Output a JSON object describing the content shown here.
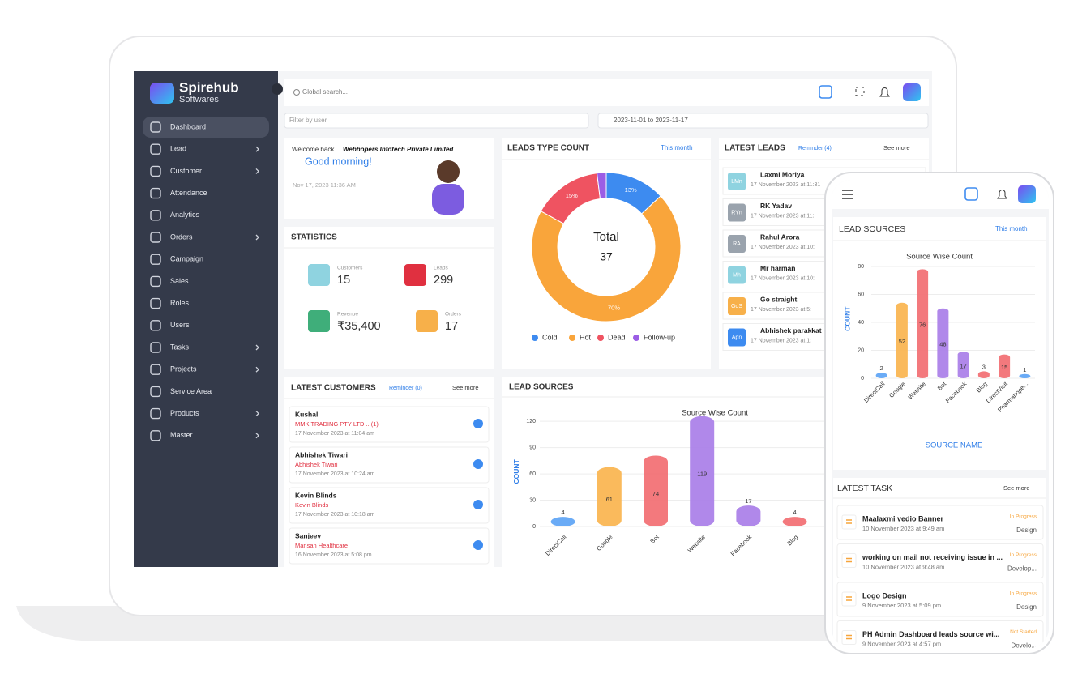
{
  "sidebar": {
    "brand": "Spirehub",
    "brand_sub": "Softwares",
    "nav": [
      "Dashboard",
      "Lead",
      "Customer",
      "Attendance",
      "Analytics",
      "Orders",
      "Campaign",
      "Sales",
      "Roles",
      "Users",
      "Tasks",
      "Projects",
      "Service Area",
      "Products",
      "Master"
    ]
  },
  "header": {
    "search": "Global search...",
    "filter": "Filter by user",
    "date_range": "2023-11-01 to 2023-11-17"
  },
  "welcome": {
    "greeting": "Welcome back",
    "company": "Webhopers Infotech Private Limited",
    "message": "Good morning!",
    "datetime": "Nov 17, 2023 11:36 AM"
  },
  "statistics": {
    "title": "STATISTICS",
    "items": [
      {
        "label": "Customers",
        "value": "15"
      },
      {
        "label": "Leads",
        "value": "299"
      },
      {
        "label": "Revenue",
        "value": "₹35,400"
      },
      {
        "label": "Orders",
        "value": "17"
      }
    ]
  },
  "latest_leads": {
    "title": "LATEST LEADS",
    "reminder": "Reminder (4)",
    "see_more": "See more",
    "items": [
      {
        "initials": "LMn",
        "name": "Laxmi Moriya",
        "date": "17 November 2023 at 11:31"
      },
      {
        "initials": "RYn",
        "name": "RK Yadav",
        "date": "17 November 2023 at 11:"
      },
      {
        "initials": "RA",
        "name": "Rahul Arora",
        "date": "17 November 2023 at 10:"
      },
      {
        "initials": "Mh",
        "name": "Mr harman",
        "date": "17 November 2023 at 10:"
      },
      {
        "initials": "GoS",
        "name": "Go straight",
        "date": "17 November 2023 at 5:"
      },
      {
        "initials": "Apn",
        "name": "Abhishek parakkat",
        "date": "17 November 2023 at 1:"
      }
    ]
  },
  "latest_customers": {
    "title": "LATEST CUSTOMERS",
    "reminder": "Reminder (0)",
    "see_more": "See more",
    "items": [
      {
        "name": "Kushal",
        "company": "MMK TRADING PTY LTD ...(1)",
        "date": "17 November 2023 at 11:04 am"
      },
      {
        "name": "Abhishek Tiwari",
        "company": "Abhishek Tiwari",
        "date": "17 November 2023 at 10:24 am"
      },
      {
        "name": "Kevin Blinds",
        "company": "Kevin Blinds",
        "date": "17 November 2023 at 10:18 am"
      },
      {
        "name": "Sanjeev",
        "company": "Mansan Healthcare",
        "date": "16 November 2023 at 5:08 pm"
      }
    ]
  },
  "laptop_lead_sources": {
    "title": "LEAD SOURCES"
  },
  "phone_lead_sources": {
    "title": "LEAD SOURCES",
    "period": "This month"
  },
  "latest_task": {
    "title": "LATEST TASK",
    "see_more": "See more",
    "items": [
      {
        "title": "Maalaxmi vedio Banner",
        "date": "10 November 2023 at 9:49 am",
        "status": "In Progress",
        "category": "Design"
      },
      {
        "title": "working on mail not receiving issue in ...",
        "date": "10 November 2023 at 9:48 am",
        "status": "In Progress",
        "category": "Develop..."
      },
      {
        "title": "Logo Design",
        "date": "9 November 2023 at 5:09 pm",
        "status": "In Progress",
        "category": "Design"
      },
      {
        "title": "PH Admin Dashboard leads source wi...",
        "date": "9 November 2023 at 4:57 pm",
        "status": "Not Started",
        "category": "Develo..."
      }
    ]
  },
  "chart_data": [
    {
      "type": "pie",
      "title": "LEADS TYPE COUNT",
      "subtitle": "This month",
      "center_label": "Total",
      "center_value": 37,
      "categories": [
        "Cold",
        "Hot",
        "Dead",
        "Follow-up"
      ],
      "values": [
        13,
        70,
        15,
        2
      ],
      "value_labels": [
        "13%",
        "70%",
        "15%",
        null
      ],
      "colors": [
        "#3d8bf0",
        "#f9a53b",
        "#ef5361",
        "#9b5de5"
      ],
      "legend": "bottom"
    },
    {
      "type": "bar",
      "title": "Source Wise Count",
      "y_label": "COUNT",
      "categories": [
        "DirectCall",
        "Google",
        "Bot",
        "Website",
        "Facebook",
        "Blog"
      ],
      "values": [
        4,
        61,
        74,
        119,
        17,
        4
      ],
      "colors": [
        "#5aa2f5",
        "#f9b24a",
        "#f26a6f",
        "#a77be8",
        "#a77be8",
        "#f26a6f"
      ],
      "ylim": [
        0,
        125
      ],
      "yticks": [
        0,
        30,
        60,
        90,
        120
      ],
      "grid": true
    },
    {
      "type": "bar",
      "title": "Source Wise Count",
      "y_label": "COUNT",
      "x_label": "SOURCE NAME",
      "categories": [
        "DirectCall",
        "Google",
        "Website",
        "Bot",
        "Facebook",
        "Blog",
        "DirectVisit",
        "Pharmahope..."
      ],
      "values": [
        2,
        52,
        76,
        48,
        17,
        3,
        15,
        1
      ],
      "colors": [
        "#5aa2f5",
        "#f9b24a",
        "#f26a6f",
        "#a77be8",
        "#a77be8",
        "#f26a6f",
        "#f26a6f",
        "#5aa2f5"
      ],
      "ylim": [
        0,
        85
      ],
      "yticks": [
        0,
        20,
        40,
        60,
        80
      ],
      "grid": true
    }
  ]
}
